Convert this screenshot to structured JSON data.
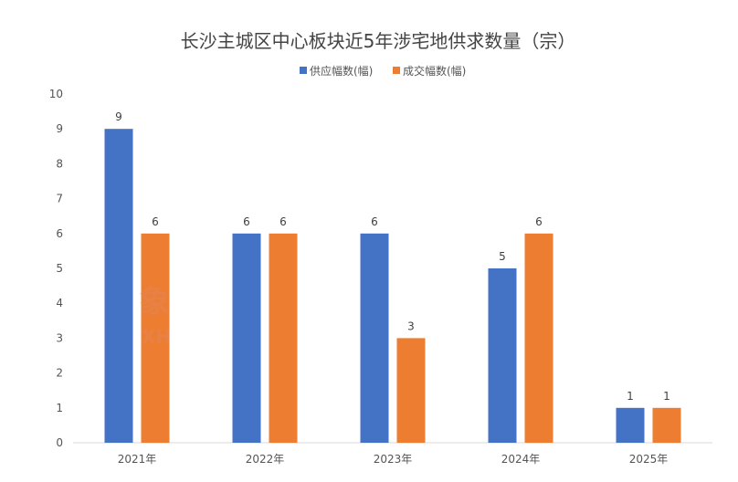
{
  "chart_data": {
    "type": "bar",
    "title": "长沙主城区中心板块近5年涉宅地供求数量（宗）",
    "categories": [
      "2021年",
      "2022年",
      "2023年",
      "2024年",
      "2025年"
    ],
    "series": [
      {
        "name": "供应幅数(幅)",
        "values": [
          9,
          6,
          6,
          5,
          1
        ],
        "color": "#4472C4"
      },
      {
        "name": "成交幅数(幅)",
        "values": [
          6,
          6,
          3,
          6,
          1
        ],
        "color": "#ED7D31"
      }
    ],
    "yticks": [
      "0",
      "1",
      "2",
      "3",
      "4",
      "5",
      "6",
      "7",
      "8",
      "9",
      "10"
    ],
    "ylim": [
      0,
      10
    ],
    "grid": false,
    "legend": "top-center",
    "xlabel": "",
    "ylabel": ""
  },
  "watermark": {
    "glyph": "象",
    "letters": "XH"
  }
}
